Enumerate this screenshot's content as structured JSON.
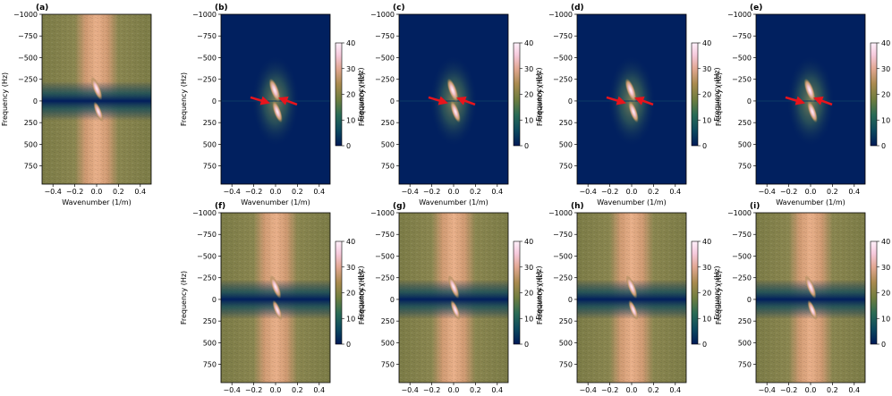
{
  "chart_data": {
    "type": "heatmap",
    "grid": false,
    "xlabel": "Wavenumber (1/m)",
    "ylabel": "Frequency (Hz)",
    "colorbar_label": "Frequency (Hz)",
    "xlim": [
      -0.5,
      0.5
    ],
    "ylim": [
      -1000,
      960
    ],
    "x_ticks": [
      -0.4,
      -0.2,
      0.0,
      0.2,
      0.4
    ],
    "x_tick_labels": [
      "−0.4",
      "−0.2",
      "0.0",
      "0.2",
      "0.4"
    ],
    "y_ticks": [
      -1000,
      -750,
      -500,
      -250,
      0,
      250,
      500,
      750
    ],
    "y_tick_labels": [
      "−1000",
      "−750",
      "−500",
      "−250",
      "0",
      "250",
      "500",
      "750"
    ],
    "clim": [
      0,
      40
    ],
    "colorbar_ticks": [
      0,
      10,
      20,
      30,
      40
    ],
    "colorbar_tick_labels": [
      "0",
      "10",
      "20",
      "30",
      "40"
    ],
    "colormap": [
      "#001a57",
      "#0d4a5e",
      "#2a6b55",
      "#6f7e3f",
      "#a98a4e",
      "#e2a792",
      "#f6c9dc",
      "#fff0fa"
    ],
    "panels": [
      {
        "label": "(a)",
        "kind": "full-spectrum",
        "arrows": false
      },
      {
        "label": "(b)",
        "kind": "extracted-fan",
        "arrows": true
      },
      {
        "label": "(c)",
        "kind": "extracted-fan",
        "arrows": true
      },
      {
        "label": "(d)",
        "kind": "extracted-fan",
        "arrows": true
      },
      {
        "label": "(e)",
        "kind": "extracted-fan",
        "arrows": true
      },
      {
        "label": "(f)",
        "kind": "full-spectrum",
        "arrows": false
      },
      {
        "label": "(g)",
        "kind": "full-spectrum",
        "arrows": false
      },
      {
        "label": "(h)",
        "kind": "full-spectrum",
        "arrows": false
      },
      {
        "label": "(i)",
        "kind": "full-spectrum",
        "arrows": false
      }
    ],
    "annotation_color": "#e8141c"
  }
}
